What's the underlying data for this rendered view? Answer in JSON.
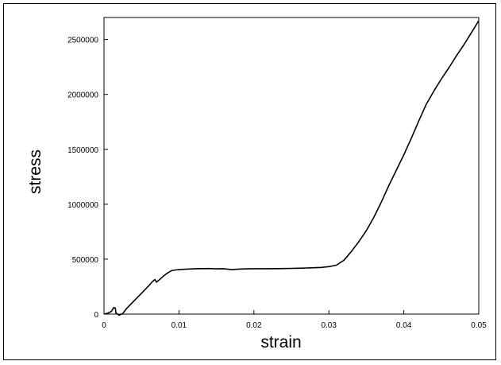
{
  "chart_data": {
    "type": "line",
    "title": "",
    "xlabel": "strain",
    "ylabel": "stress",
    "xlim": [
      0,
      0.05
    ],
    "ylim": [
      0,
      2700000
    ],
    "x_ticks": [
      0,
      0.01,
      0.02,
      0.03,
      0.04,
      0.05
    ],
    "x_tick_labels": [
      "0",
      "0.01",
      "0.02",
      "0.03",
      "0.04",
      "0.05"
    ],
    "y_ticks": [
      0,
      500000,
      1000000,
      1500000,
      2000000,
      2500000
    ],
    "y_tick_labels": [
      "0",
      "500000",
      "1000000",
      "1500000",
      "2000000",
      "2500000"
    ],
    "grid": false,
    "legend": "none",
    "line_color": "#000000",
    "series": [
      {
        "x": [
          0.0,
          0.0005,
          0.001,
          0.0013,
          0.0015,
          0.0016,
          0.0018,
          0.002,
          0.0025,
          0.003,
          0.004,
          0.005,
          0.006,
          0.0065,
          0.0068,
          0.007,
          0.0075,
          0.008,
          0.0085,
          0.009,
          0.0095,
          0.01,
          0.011,
          0.012,
          0.013,
          0.014,
          0.015,
          0.016,
          0.017,
          0.018,
          0.019,
          0.02,
          0.021,
          0.022,
          0.023,
          0.024,
          0.025,
          0.026,
          0.027,
          0.028,
          0.029,
          0.03,
          0.031,
          0.032,
          0.033,
          0.034,
          0.035,
          0.036,
          0.037,
          0.038,
          0.039,
          0.04,
          0.041,
          0.042,
          0.043,
          0.044,
          0.045,
          0.046,
          0.047,
          0.048,
          0.049,
          0.05
        ],
        "y": [
          0,
          8000,
          25000,
          60000,
          55000,
          10000,
          0,
          -10000,
          5000,
          50000,
          120000,
          190000,
          260000,
          300000,
          315000,
          290000,
          320000,
          350000,
          375000,
          395000,
          402000,
          405000,
          410000,
          412000,
          414000,
          415000,
          412000,
          413000,
          405000,
          410000,
          412000,
          413000,
          413000,
          413000,
          414000,
          415000,
          416000,
          418000,
          420000,
          422000,
          425000,
          432000,
          445000,
          490000,
          570000,
          660000,
          760000,
          880000,
          1020000,
          1170000,
          1310000,
          1450000,
          1600000,
          1760000,
          1910000,
          2030000,
          2140000,
          2240000,
          2350000,
          2450000,
          2560000,
          2670000
        ]
      }
    ]
  }
}
